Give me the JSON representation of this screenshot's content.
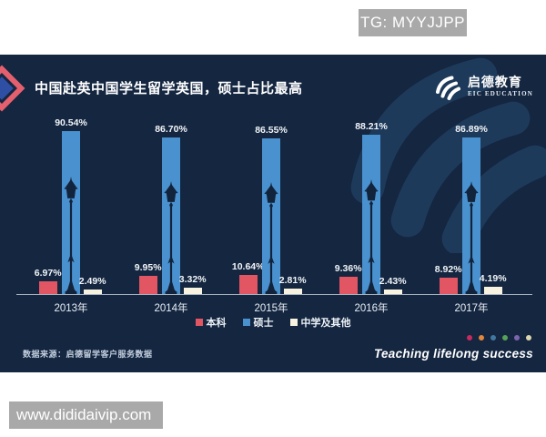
{
  "overlay": {
    "tg_label": "TG: MYYJJPP",
    "site_label": "www.dididaivip.com"
  },
  "panel": {
    "title": "中国赴英中国学生留学英国，硕士占比最高",
    "logo": {
      "name": "启德教育",
      "sub": "EIC EDUCATION"
    },
    "source_note": "数据来源：启德留学客户服务数据",
    "slogan": "Teaching lifelong success",
    "dot_colors": [
      "#c92a5e",
      "#e2873b",
      "#43779f",
      "#57a257",
      "#7d64ae",
      "#ded7ad"
    ],
    "background_color": "#142640",
    "watermark_color": "#1e3a5a"
  },
  "chart_data": {
    "type": "bar",
    "categories": [
      "2013年",
      "2014年",
      "2015年",
      "2016年",
      "2017年"
    ],
    "series": [
      {
        "name": "本科",
        "color": "#e25562",
        "values": [
          6.97,
          9.95,
          10.64,
          9.36,
          8.92
        ]
      },
      {
        "name": "硕士",
        "color": "#4a92cf",
        "values": [
          90.54,
          86.7,
          86.55,
          88.21,
          86.89
        ]
      },
      {
        "name": "中学及其他",
        "color": "#f7f3e0",
        "values": [
          2.49,
          3.32,
          2.81,
          2.43,
          4.19
        ]
      }
    ],
    "value_suffix": "%",
    "ylim": [
      0,
      100
    ],
    "grid": false,
    "legend_position": "bottom",
    "baseline_color": "#c2cbd6",
    "lamp_silhouette_color": "#12233c"
  }
}
